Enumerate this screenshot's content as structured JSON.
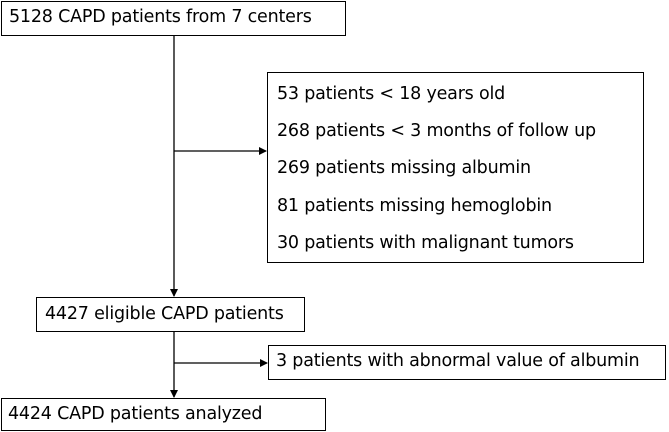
{
  "flowchart": {
    "start": "5128 CAPD patients from 7 centers",
    "exclusions_1": [
      "53 patients < 18 years old",
      "268 patients < 3 months of follow up",
      "269 patients missing albumin",
      "81 patients missing hemoglobin",
      "30 patients with malignant tumors"
    ],
    "eligible": "4427 eligible CAPD patients",
    "exclusion_2": "3 patients with abnormal value of albumin",
    "final": "4424 CAPD patients analyzed"
  },
  "colors": {
    "line": "#000000",
    "box_fill": "#ffffff"
  }
}
